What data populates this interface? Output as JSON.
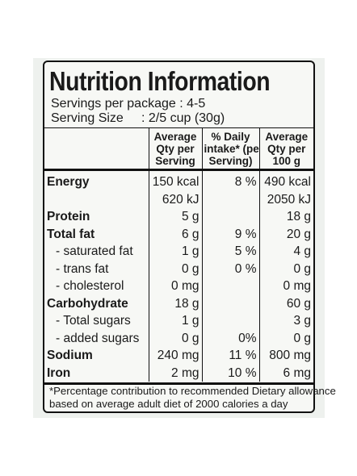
{
  "panel": {
    "title": "Nutrition Information",
    "servings_per_package": "Servings per package : 4-5",
    "serving_size_label": "Serving Size",
    "serving_size_value": ": 2/5 cup (30g)"
  },
  "columns": {
    "per_serving": [
      "Average",
      "Qty per",
      "Serving"
    ],
    "daily_intake": [
      "% Daily",
      "intake* (per",
      "Serving)"
    ],
    "per_100g": [
      "Average",
      "Qty per",
      "100 g"
    ]
  },
  "rows": [
    {
      "label": "Energy",
      "serving": "150 kcal",
      "daily": "8 %",
      "per100": "490 kcal",
      "style": "bold"
    },
    {
      "label": "",
      "serving": "620 kJ",
      "daily": "",
      "per100": "2050 kJ",
      "style": "bold"
    },
    {
      "label": "Protein",
      "serving": "5 g",
      "daily": "",
      "per100": "18 g",
      "style": "bold"
    },
    {
      "label": "Total fat",
      "serving": "6 g",
      "daily": "9 %",
      "per100": "20 g",
      "style": "bold"
    },
    {
      "label": "- saturated fat",
      "serving": "1 g",
      "daily": "5 %",
      "per100": "4 g",
      "style": "sub"
    },
    {
      "label": "- trans fat",
      "serving": "0 g",
      "daily": "0 %",
      "per100": "0 g",
      "style": "sub"
    },
    {
      "label": "- cholesterol",
      "serving": "0 mg",
      "daily": "",
      "per100": "0 mg",
      "style": "sub"
    },
    {
      "label": "Carbohydrate",
      "serving": "18 g",
      "daily": "",
      "per100": "60 g",
      "style": "bold"
    },
    {
      "label": "- Total sugars",
      "serving": "1 g",
      "daily": "",
      "per100": "3 g",
      "style": "sub"
    },
    {
      "label": "- added sugars",
      "serving": "0 g",
      "daily": "0%",
      "per100": "0 g",
      "style": "sub"
    },
    {
      "label": "Sodium",
      "serving": "240 mg",
      "daily": "11 %",
      "per100": "800 mg",
      "style": "bold"
    },
    {
      "label": "Iron",
      "serving": "2 mg",
      "daily": "10 %",
      "per100": "6 mg",
      "style": "bold"
    }
  ],
  "footnote": {
    "line1": "*Percentage contribution to recommended Dietary allowance",
    "line2": "based on average adult diet of 2000 calories a day"
  }
}
